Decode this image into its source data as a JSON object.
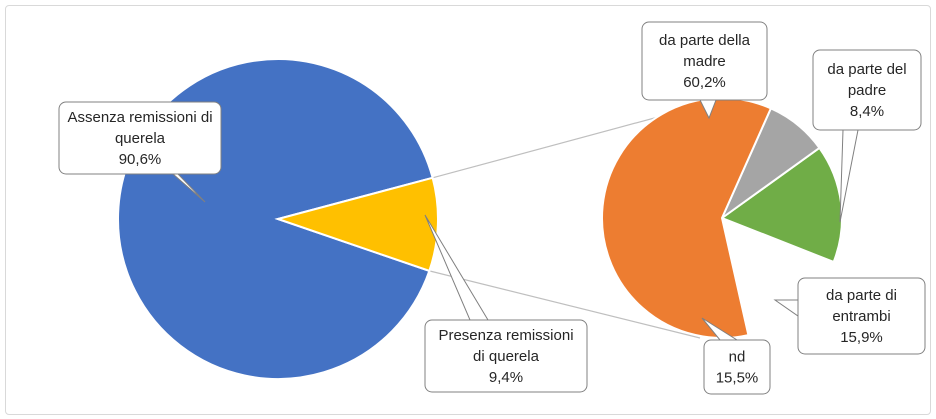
{
  "chart_data": [
    {
      "type": "pie",
      "title": "",
      "slices": [
        {
          "label_lines": [
            "Assenza remissioni di",
            "querela"
          ],
          "value_label": "90,6%",
          "value": 90.6,
          "color": "#4472C4"
        },
        {
          "label_lines": [
            "Presenza remissioni",
            "di querela"
          ],
          "value_label": "9,4%",
          "value": 9.4,
          "color": "#FFC000"
        }
      ]
    },
    {
      "type": "pie",
      "title": "",
      "slices": [
        {
          "label_lines": [
            "da parte della",
            "madre"
          ],
          "value_label": "60,2%",
          "value": 60.2,
          "color": "#ED7D31"
        },
        {
          "label_lines": [
            "da parte del",
            "padre"
          ],
          "value_label": "8,4%",
          "value": 8.4,
          "color": "#A5A5A5"
        },
        {
          "label_lines": [
            "da parte di",
            "entrambi"
          ],
          "value_label": "15,9%",
          "value": 15.9,
          "color": "#70AD47"
        },
        {
          "label_lines": [
            "nd"
          ],
          "value_label": "15,5%",
          "value": 15.5,
          "color": "#FFFFFF"
        }
      ]
    }
  ]
}
